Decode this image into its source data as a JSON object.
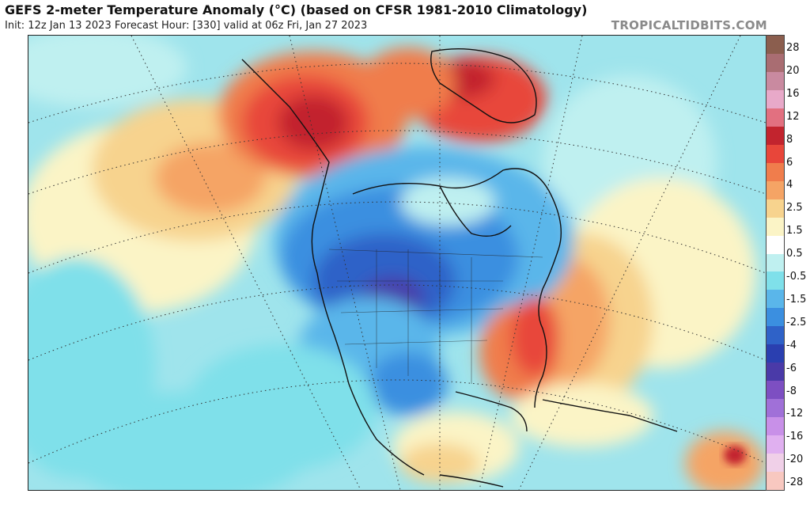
{
  "header": {
    "title": "GEFS 2-meter Temperature Anomaly (°C) (based on CFSR 1981-2010 Climatology)",
    "subtitle": "Init: 12z Jan 13 2023   Forecast Hour: [330]   valid at 06z Fri, Jan 27 2023",
    "brand": "TROPICALTIDBITS.COM"
  },
  "colorbar": {
    "labels": [
      "28",
      "20",
      "16",
      "12",
      "8",
      "6",
      "4",
      "2.5",
      "1.5",
      "0.5",
      "-0.5",
      "-1.5",
      "-2.5",
      "-4",
      "-6",
      "-8",
      "-12",
      "-16",
      "-20",
      "-28"
    ],
    "colors": [
      "#8b5e4e",
      "#a96d72",
      "#c98aa0",
      "#e8a9c9",
      "#e27080",
      "#c2242e",
      "#e8463a",
      "#f07d4c",
      "#f5a465",
      "#f7d38e",
      "#fbf4c6",
      "#ffffff",
      "#bff0f0",
      "#7fe0ea",
      "#5ab6ea",
      "#3b8fe0",
      "#2f62c8",
      "#2a3fb0",
      "#4a3aa8",
      "#7d4fc2",
      "#a070d8",
      "#c890e8",
      "#e0b0f0",
      "#f0d0e8",
      "#f8c8c0"
    ]
  },
  "icons": {
    "colorbar": "temperature-scale-icon"
  }
}
